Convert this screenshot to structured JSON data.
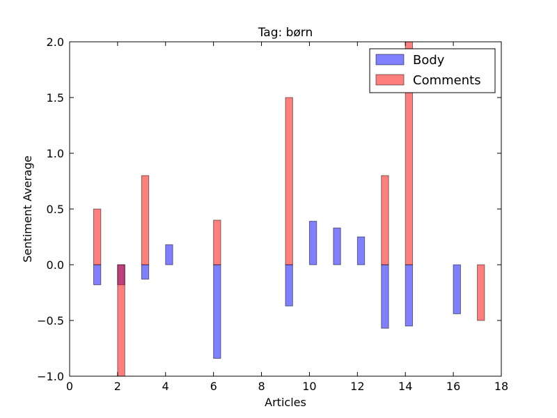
{
  "chart_data": {
    "type": "bar",
    "title": "Tag: børn",
    "xlabel": "Articles",
    "ylabel": "Sentiment Average",
    "xlim": [
      0,
      18
    ],
    "ylim": [
      -1.0,
      2.0
    ],
    "x_ticks": [
      0,
      2,
      4,
      6,
      8,
      10,
      12,
      14,
      16,
      18
    ],
    "x_tick_labels": [
      "0",
      "2",
      "4",
      "6",
      "8",
      "10",
      "12",
      "14",
      "16",
      "18"
    ],
    "y_ticks": [
      -1.0,
      -0.5,
      0.0,
      0.5,
      1.0,
      1.5,
      2.0
    ],
    "y_tick_labels": [
      "−1.0",
      "−0.5",
      "0.0",
      "0.5",
      "1.0",
      "1.5",
      "2.0"
    ],
    "grid": false,
    "legend_position": "top-right",
    "bar_width": 0.3,
    "categories": [
      1,
      2,
      3,
      4,
      5,
      6,
      7,
      8,
      9,
      10,
      11,
      12,
      13,
      14,
      15,
      16,
      17
    ],
    "series": [
      {
        "name": "Body",
        "color": "#0000ff",
        "alpha": 0.5,
        "values": [
          -0.18,
          -0.18,
          -0.13,
          0.18,
          0.0,
          -0.84,
          0.0,
          0.0,
          -0.37,
          0.39,
          0.33,
          0.25,
          -0.57,
          -0.55,
          0.0,
          -0.44,
          0.0
        ]
      },
      {
        "name": "Comments",
        "color": "#ff0000",
        "alpha": 0.5,
        "values": [
          0.5,
          -1.0,
          0.8,
          0.0,
          0.0,
          0.4,
          0.0,
          0.0,
          1.5,
          0.0,
          0.0,
          0.0,
          0.8,
          2.0,
          0.0,
          0.0,
          -0.5
        ]
      }
    ]
  }
}
